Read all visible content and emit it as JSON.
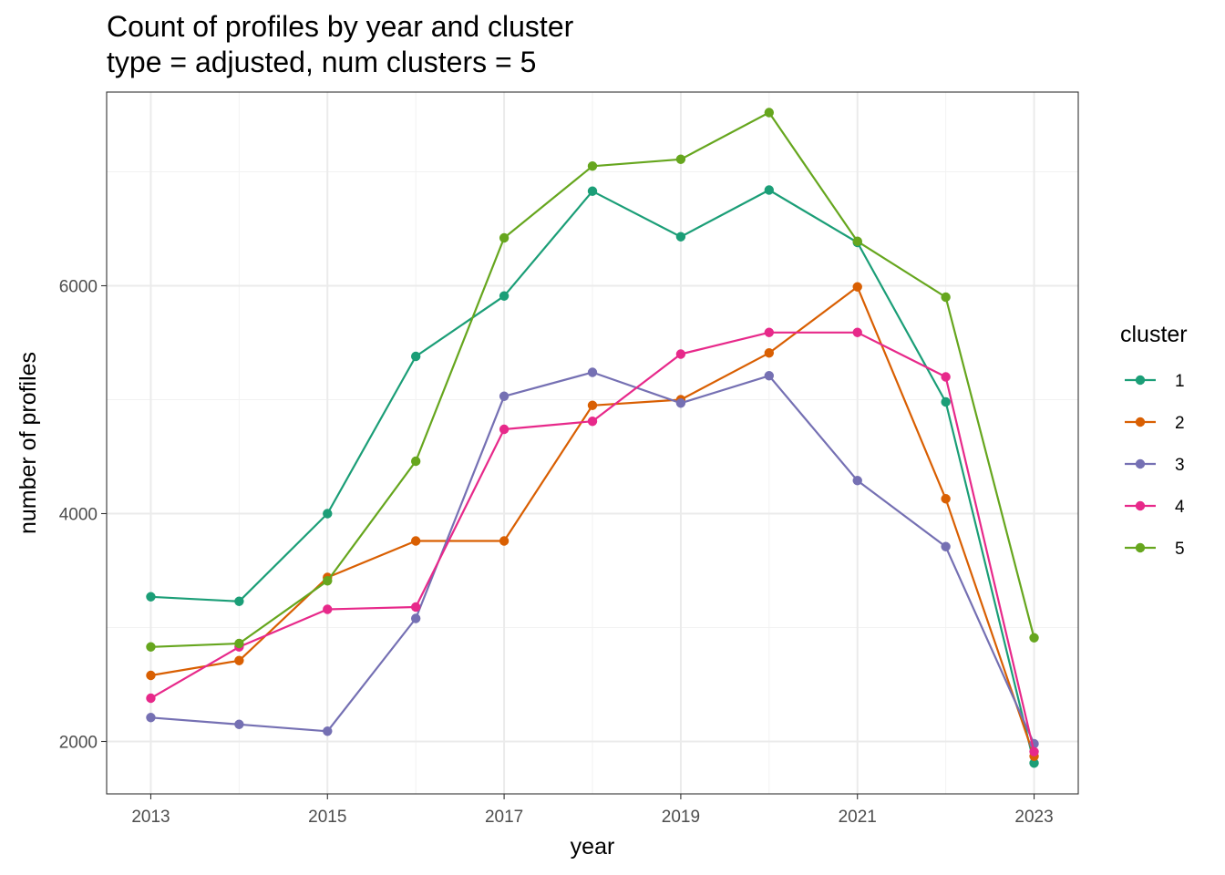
{
  "chart_data": {
    "type": "line",
    "title": "Count of profiles by year and cluster",
    "subtitle": "type = adjusted, num clusters = 5",
    "xlabel": "year",
    "ylabel": "number of profiles",
    "x": [
      2013,
      2014,
      2015,
      2016,
      2017,
      2018,
      2019,
      2020,
      2021,
      2022,
      2023
    ],
    "xticks": [
      2013,
      2015,
      2017,
      2019,
      2021,
      2023
    ],
    "yticks": [
      2000,
      4000,
      6000
    ],
    "xlim": [
      2012.5,
      2023.5
    ],
    "ylim": [
      1540,
      7700
    ],
    "grid": true,
    "legend_title": "cluster",
    "legend_position": "right",
    "series": [
      {
        "name": "1",
        "color": "#1B9E77",
        "values": [
          3270,
          3230,
          4000,
          5380,
          5910,
          6830,
          6430,
          6840,
          6380,
          4980,
          1810
        ]
      },
      {
        "name": "2",
        "color": "#D95F02",
        "values": [
          2580,
          2710,
          3440,
          3760,
          3760,
          4950,
          5000,
          5410,
          5990,
          4130,
          1870
        ]
      },
      {
        "name": "3",
        "color": "#7570B3",
        "values": [
          2210,
          2150,
          2090,
          3080,
          5030,
          5240,
          4970,
          5210,
          4290,
          3710,
          1980
        ]
      },
      {
        "name": "4",
        "color": "#E7298A",
        "values": [
          2380,
          2830,
          3160,
          3180,
          4740,
          4810,
          5400,
          5590,
          5590,
          5200,
          1910
        ]
      },
      {
        "name": "5",
        "color": "#66A61E",
        "values": [
          2830,
          2860,
          3410,
          4460,
          6420,
          7050,
          7110,
          7520,
          6390,
          5900,
          2910
        ]
      }
    ]
  }
}
